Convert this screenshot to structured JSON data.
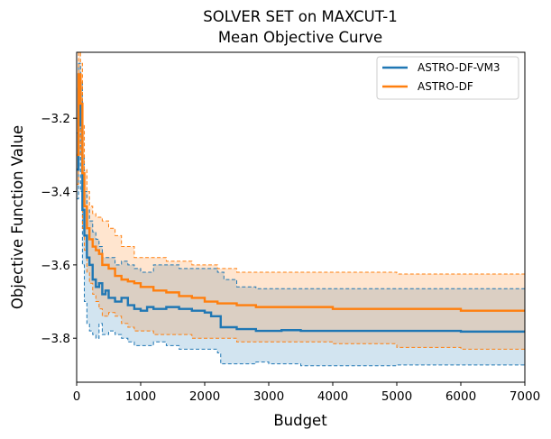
{
  "chart_data": {
    "type": "line",
    "title": "SOLVER SET on MAXCUT-1",
    "subtitle": "Mean Objective Curve",
    "xlabel": "Budget",
    "ylabel": "Objective Function Value",
    "xlim": [
      0,
      7000
    ],
    "ylim": [
      -3.92,
      -3.02
    ],
    "x_ticks": [
      0,
      1000,
      2000,
      3000,
      4000,
      5000,
      6000,
      7000
    ],
    "x_tick_labels": [
      "0",
      "1000",
      "2000",
      "3000",
      "4000",
      "5000",
      "6000",
      "7000"
    ],
    "y_ticks": [
      -3.8,
      -3.6,
      -3.4,
      -3.2
    ],
    "y_tick_labels": [
      "−3.8",
      "−3.6",
      "−3.4",
      "−3.2"
    ],
    "grid": false,
    "legend_position": "top-right",
    "series": [
      {
        "name": "ASTRO-DF-VM3",
        "color": "#1f77b4",
        "mean": [
          [
            0,
            -3.34
          ],
          [
            30,
            -3.12
          ],
          [
            60,
            -3.22
          ],
          [
            90,
            -3.45
          ],
          [
            120,
            -3.52
          ],
          [
            160,
            -3.58
          ],
          [
            200,
            -3.6
          ],
          [
            250,
            -3.64
          ],
          [
            300,
            -3.66
          ],
          [
            350,
            -3.65
          ],
          [
            400,
            -3.68
          ],
          [
            450,
            -3.67
          ],
          [
            500,
            -3.69
          ],
          [
            600,
            -3.7
          ],
          [
            700,
            -3.69
          ],
          [
            800,
            -3.71
          ],
          [
            900,
            -3.72
          ],
          [
            1000,
            -3.725
          ],
          [
            1100,
            -3.715
          ],
          [
            1200,
            -3.72
          ],
          [
            1400,
            -3.715
          ],
          [
            1600,
            -3.72
          ],
          [
            1800,
            -3.725
          ],
          [
            2000,
            -3.73
          ],
          [
            2100,
            -3.74
          ],
          [
            2250,
            -3.77
          ],
          [
            2500,
            -3.775
          ],
          [
            2800,
            -3.78
          ],
          [
            3000,
            -3.78
          ],
          [
            3200,
            -3.778
          ],
          [
            3500,
            -3.78
          ],
          [
            4000,
            -3.78
          ],
          [
            5000,
            -3.78
          ],
          [
            6000,
            -3.782
          ],
          [
            7000,
            -3.782
          ]
        ],
        "lower": [
          [
            0,
            -3.42
          ],
          [
            30,
            -3.2
          ],
          [
            60,
            -3.4
          ],
          [
            90,
            -3.6
          ],
          [
            120,
            -3.7
          ],
          [
            160,
            -3.76
          ],
          [
            200,
            -3.78
          ],
          [
            250,
            -3.79
          ],
          [
            300,
            -3.8
          ],
          [
            350,
            -3.76
          ],
          [
            400,
            -3.79
          ],
          [
            500,
            -3.78
          ],
          [
            600,
            -3.79
          ],
          [
            700,
            -3.8
          ],
          [
            800,
            -3.81
          ],
          [
            900,
            -3.82
          ],
          [
            1000,
            -3.82
          ],
          [
            1200,
            -3.81
          ],
          [
            1400,
            -3.82
          ],
          [
            1600,
            -3.83
          ],
          [
            1800,
            -3.83
          ],
          [
            2000,
            -3.83
          ],
          [
            2200,
            -3.84
          ],
          [
            2250,
            -3.87
          ],
          [
            2500,
            -3.87
          ],
          [
            2800,
            -3.865
          ],
          [
            3000,
            -3.87
          ],
          [
            3500,
            -3.875
          ],
          [
            4000,
            -3.875
          ],
          [
            5000,
            -3.873
          ],
          [
            6000,
            -3.873
          ],
          [
            7000,
            -3.875
          ]
        ],
        "upper": [
          [
            0,
            -3.24
          ],
          [
            30,
            -3.05
          ],
          [
            60,
            -3.1
          ],
          [
            90,
            -3.3
          ],
          [
            120,
            -3.4
          ],
          [
            160,
            -3.45
          ],
          [
            200,
            -3.48
          ],
          [
            250,
            -3.51
          ],
          [
            300,
            -3.53
          ],
          [
            350,
            -3.55
          ],
          [
            400,
            -3.58
          ],
          [
            500,
            -3.58
          ],
          [
            600,
            -3.6
          ],
          [
            700,
            -3.59
          ],
          [
            800,
            -3.6
          ],
          [
            900,
            -3.61
          ],
          [
            1000,
            -3.62
          ],
          [
            1200,
            -3.6
          ],
          [
            1400,
            -3.6
          ],
          [
            1600,
            -3.61
          ],
          [
            1800,
            -3.61
          ],
          [
            2000,
            -3.61
          ],
          [
            2200,
            -3.62
          ],
          [
            2300,
            -3.64
          ],
          [
            2500,
            -3.66
          ],
          [
            2800,
            -3.665
          ],
          [
            3000,
            -3.665
          ],
          [
            3500,
            -3.665
          ],
          [
            4000,
            -3.665
          ],
          [
            5000,
            -3.665
          ],
          [
            6000,
            -3.665
          ],
          [
            7000,
            -3.665
          ]
        ]
      },
      {
        "name": "ASTRO-DF",
        "color": "#ff7f0e",
        "mean": [
          [
            0,
            -3.3
          ],
          [
            30,
            -3.08
          ],
          [
            60,
            -3.16
          ],
          [
            90,
            -3.35
          ],
          [
            120,
            -3.44
          ],
          [
            160,
            -3.5
          ],
          [
            200,
            -3.53
          ],
          [
            250,
            -3.55
          ],
          [
            300,
            -3.56
          ],
          [
            350,
            -3.57
          ],
          [
            400,
            -3.6
          ],
          [
            500,
            -3.61
          ],
          [
            600,
            -3.63
          ],
          [
            700,
            -3.64
          ],
          [
            800,
            -3.645
          ],
          [
            900,
            -3.65
          ],
          [
            1000,
            -3.66
          ],
          [
            1200,
            -3.67
          ],
          [
            1400,
            -3.675
          ],
          [
            1600,
            -3.685
          ],
          [
            1800,
            -3.69
          ],
          [
            2000,
            -3.7
          ],
          [
            2200,
            -3.705
          ],
          [
            2500,
            -3.71
          ],
          [
            2800,
            -3.715
          ],
          [
            3000,
            -3.715
          ],
          [
            3500,
            -3.715
          ],
          [
            4000,
            -3.72
          ],
          [
            5000,
            -3.72
          ],
          [
            6000,
            -3.725
          ],
          [
            7000,
            -3.725
          ]
        ],
        "lower": [
          [
            0,
            -3.38
          ],
          [
            30,
            -3.15
          ],
          [
            60,
            -3.3
          ],
          [
            90,
            -3.5
          ],
          [
            120,
            -3.56
          ],
          [
            160,
            -3.62
          ],
          [
            200,
            -3.65
          ],
          [
            250,
            -3.68
          ],
          [
            300,
            -3.7
          ],
          [
            350,
            -3.72
          ],
          [
            400,
            -3.74
          ],
          [
            500,
            -3.73
          ],
          [
            600,
            -3.74
          ],
          [
            700,
            -3.76
          ],
          [
            800,
            -3.77
          ],
          [
            900,
            -3.78
          ],
          [
            1000,
            -3.78
          ],
          [
            1200,
            -3.79
          ],
          [
            1400,
            -3.79
          ],
          [
            1600,
            -3.79
          ],
          [
            1800,
            -3.8
          ],
          [
            2000,
            -3.8
          ],
          [
            2200,
            -3.8
          ],
          [
            2500,
            -3.81
          ],
          [
            3000,
            -3.81
          ],
          [
            4000,
            -3.815
          ],
          [
            5000,
            -3.825
          ],
          [
            6000,
            -3.83
          ],
          [
            7000,
            -3.83
          ]
        ],
        "upper": [
          [
            0,
            -3.2
          ],
          [
            30,
            -3.02
          ],
          [
            60,
            -3.05
          ],
          [
            90,
            -3.22
          ],
          [
            120,
            -3.34
          ],
          [
            160,
            -3.4
          ],
          [
            200,
            -3.44
          ],
          [
            250,
            -3.46
          ],
          [
            300,
            -3.47
          ],
          [
            350,
            -3.47
          ],
          [
            400,
            -3.48
          ],
          [
            500,
            -3.5
          ],
          [
            600,
            -3.52
          ],
          [
            700,
            -3.55
          ],
          [
            800,
            -3.55
          ],
          [
            900,
            -3.58
          ],
          [
            1000,
            -3.58
          ],
          [
            1200,
            -3.58
          ],
          [
            1400,
            -3.59
          ],
          [
            1600,
            -3.59
          ],
          [
            1800,
            -3.6
          ],
          [
            2000,
            -3.6
          ],
          [
            2200,
            -3.61
          ],
          [
            2500,
            -3.62
          ],
          [
            3000,
            -3.62
          ],
          [
            4000,
            -3.62
          ],
          [
            5000,
            -3.625
          ],
          [
            6000,
            -3.625
          ],
          [
            7000,
            -3.63
          ]
        ]
      }
    ]
  }
}
